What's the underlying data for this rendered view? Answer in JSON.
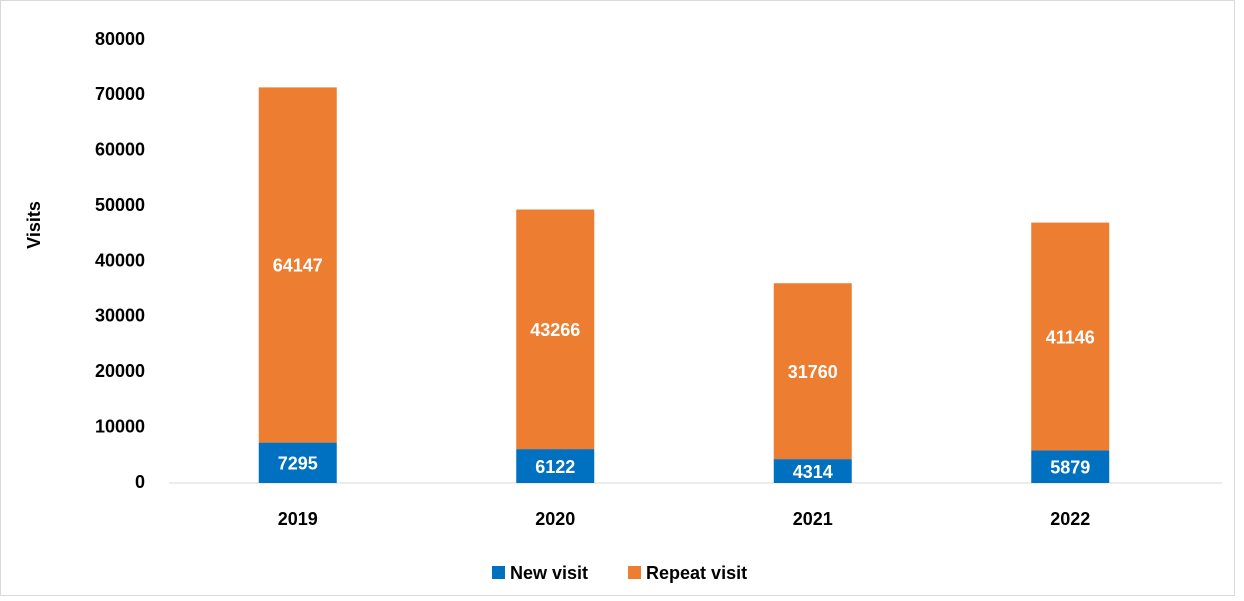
{
  "chart_data": {
    "type": "stacked_bar",
    "y_label": "Visits",
    "categories": [
      "2019",
      "2020",
      "2021",
      "2022"
    ],
    "series": [
      {
        "name": "New visit",
        "color": "#0070c0",
        "values": [
          7295,
          6122,
          4314,
          5879
        ]
      },
      {
        "name": "Repeat visit",
        "color": "#ed7d31",
        "values": [
          64147,
          43266,
          31760,
          41146
        ]
      }
    ],
    "ylim": [
      0,
      80000
    ],
    "yticks": [
      0,
      10000,
      20000,
      30000,
      40000,
      50000,
      60000,
      70000,
      80000
    ],
    "grid": false,
    "legend": "bottom"
  }
}
